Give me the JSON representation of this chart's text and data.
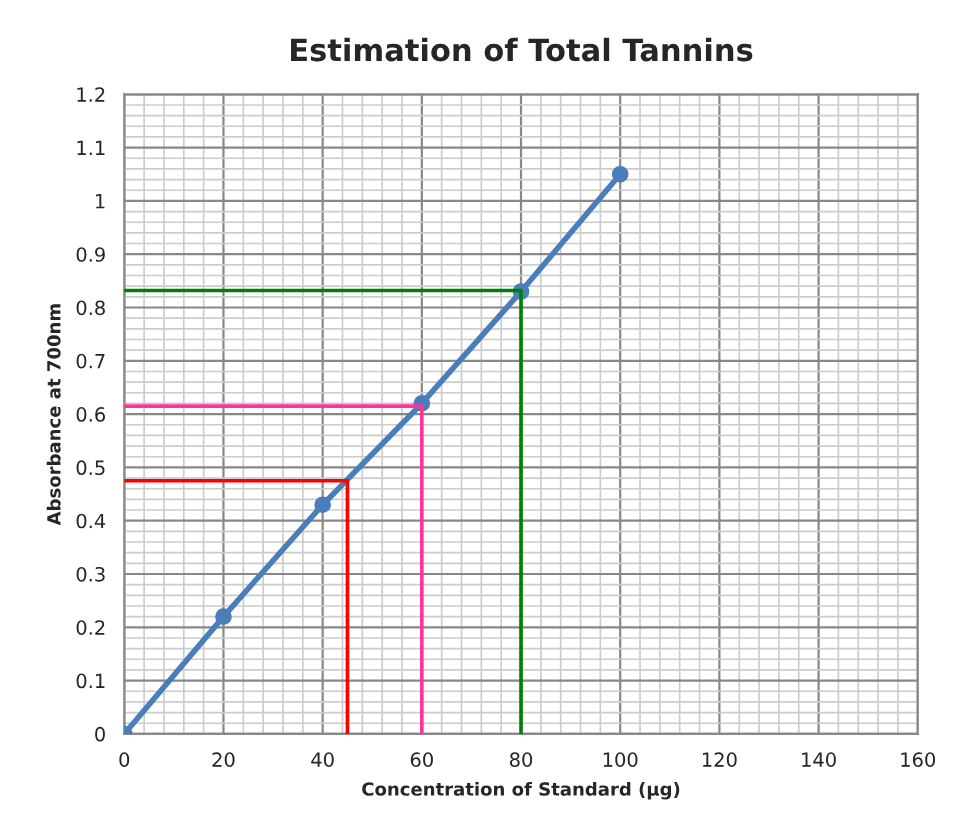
{
  "chart_data": {
    "type": "line",
    "title": "Estimation of Total Tannins",
    "xlabel": "Concentration of Standard (µg)",
    "ylabel": "Absorbance at 700nm",
    "x": [
      0,
      20,
      40,
      60,
      80,
      100
    ],
    "series": [
      {
        "color": "#4a7ebb",
        "values": [
          0,
          0.22,
          0.43,
          0.62,
          0.83,
          1.05
        ],
        "marker": "circle"
      },
      {
        "type": "line",
        "color": "#ff0000",
        "x": [
          0,
          45,
          45
        ],
        "values": [
          0.475,
          0.475,
          0
        ],
        "marker": "none"
      },
      {
        "type": "line",
        "color": "#ff3399",
        "x": [
          0,
          60,
          60
        ],
        "values": [
          0.615,
          0.615,
          0
        ],
        "marker": "none"
      },
      {
        "type": "line",
        "color": "#008000",
        "x": [
          0,
          80,
          80
        ],
        "values": [
          0.832,
          0.832,
          0
        ],
        "marker": "none"
      }
    ],
    "xlim": [
      0,
      160
    ],
    "xticks": [
      0,
      20,
      40,
      60,
      80,
      100,
      120,
      140,
      160
    ],
    "ylim": [
      0,
      1.2
    ],
    "yticks": [
      0,
      0.1,
      0.2,
      0.3,
      0.4,
      0.5,
      0.6,
      0.7,
      0.8,
      0.9,
      1,
      1.1,
      1.2
    ],
    "grid": true,
    "line_style": "solid"
  }
}
